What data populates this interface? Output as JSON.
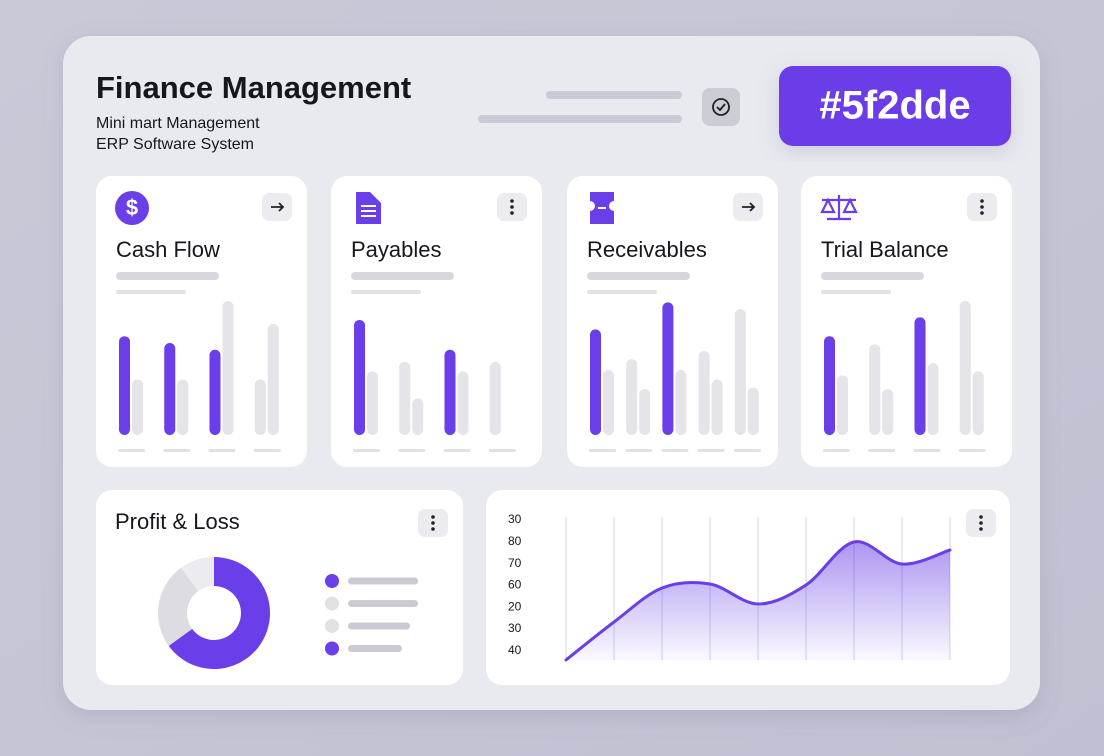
{
  "header": {
    "title": "Finance Management",
    "subtitle": [
      "Mini mart Management",
      "ERP Software System"
    ],
    "badge": "#5f2dde"
  },
  "cards": [
    {
      "title": "Cash Flow",
      "values": [
        73,
        41,
        68,
        41,
        63,
        99,
        41,
        82
      ],
      "colors": [
        "#6a3ee8",
        "#e4e4e9",
        "#6a3ee8",
        "#e4e4e9",
        "#6a3ee8",
        "#e4e4e9",
        "#e4e4e9",
        "#e4e4e9"
      ]
    },
    {
      "title": "Payables",
      "values": [
        85,
        47,
        54,
        27,
        63,
        47,
        54
      ],
      "colors": [
        "#6a3ee8",
        "#e4e4e9",
        "#e4e4e9",
        "#e4e4e9",
        "#6a3ee8",
        "#e4e4e9",
        "#e4e4e9"
      ]
    },
    {
      "title": "Receivables",
      "values": [
        78,
        48,
        56,
        34,
        98,
        48,
        62,
        41,
        93,
        35
      ],
      "colors": [
        "#6a3ee8",
        "#e4e4e9",
        "#e4e4e9",
        "#e4e4e9",
        "#6a3ee8",
        "#e4e4e9",
        "#e4e4e9",
        "#e4e4e9",
        "#e4e4e9",
        "#e4e4e9"
      ]
    },
    {
      "title": "Trial Balance",
      "values": [
        73,
        44,
        67,
        34,
        87,
        53,
        99,
        47
      ],
      "colors": [
        "#6a3ee8",
        "#e4e4e9",
        "#e4e4e9",
        "#e4e4e9",
        "#6a3ee8",
        "#e4e4e9",
        "#e4e4e9",
        "#e4e4e9"
      ]
    }
  ],
  "profit_loss": {
    "title": "Profit & Loss",
    "values": [
      65,
      25,
      10
    ],
    "colors": [
      "#6a3ee8",
      "#dcdce2",
      "#ececf0"
    ],
    "legend_colors": [
      "#6a3ee8",
      "#e0e0e5",
      "#e0e0e5",
      "#6a3ee8"
    ]
  },
  "trend": {
    "type": "area",
    "axis_labels": [
      30,
      80,
      70,
      60,
      20,
      30,
      40
    ],
    "values": [
      0,
      38,
      72,
      76,
      56,
      75,
      118,
      96,
      110
    ],
    "color": "#6a3ee8"
  }
}
